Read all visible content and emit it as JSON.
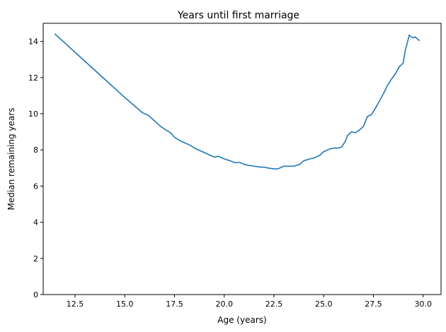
{
  "chart_data": {
    "type": "line",
    "title": "Years until first marriage",
    "xlabel": "Age (years)",
    "ylabel": "Median remaining years",
    "xlim": [
      10.9,
      30.9
    ],
    "ylim": [
      0,
      15
    ],
    "xticks": [
      12.5,
      15.0,
      17.5,
      20.0,
      22.5,
      25.0,
      27.5,
      30.0
    ],
    "xtick_labels": [
      "12.5",
      "15.0",
      "17.5",
      "20.0",
      "22.5",
      "25.0",
      "27.5",
      "30.0"
    ],
    "yticks": [
      0,
      2,
      4,
      6,
      8,
      10,
      12,
      14
    ],
    "ytick_labels": [
      "0",
      "2",
      "4",
      "6",
      "8",
      "10",
      "12",
      "14"
    ],
    "grid": false,
    "series": [
      {
        "color": "#1f77b4",
        "x": [
          11.5,
          12.0,
          13.0,
          14.0,
          15.0,
          15.9,
          16.0,
          16.2,
          16.5,
          16.8,
          17.0,
          17.3,
          17.5,
          17.8,
          18.0,
          18.3,
          18.5,
          18.8,
          19.0,
          19.3,
          19.5,
          19.7,
          20.0,
          20.3,
          20.5,
          20.8,
          21.0,
          21.2,
          21.5,
          21.8,
          22.0,
          22.2,
          22.5,
          22.7,
          22.9,
          23.0,
          23.3,
          23.5,
          23.8,
          24.0,
          24.3,
          24.5,
          24.8,
          25.0,
          25.3,
          25.5,
          25.7,
          25.9,
          26.1,
          26.2,
          26.4,
          26.6,
          26.8,
          27.0,
          27.2,
          27.4,
          27.6,
          27.8,
          28.0,
          28.2,
          28.4,
          28.6,
          28.8,
          29.0,
          29.1,
          29.2,
          29.3,
          29.4,
          29.5,
          29.6,
          29.7,
          29.8
        ],
        "y": [
          14.4,
          13.9,
          12.9,
          11.9,
          10.9,
          10.05,
          10.0,
          9.9,
          9.6,
          9.3,
          9.15,
          8.95,
          8.7,
          8.5,
          8.4,
          8.25,
          8.1,
          7.95,
          7.85,
          7.7,
          7.6,
          7.65,
          7.5,
          7.4,
          7.3,
          7.3,
          7.2,
          7.15,
          7.1,
          7.05,
          7.05,
          7.0,
          6.95,
          6.95,
          7.05,
          7.1,
          7.1,
          7.1,
          7.2,
          7.4,
          7.5,
          7.55,
          7.7,
          7.9,
          8.05,
          8.1,
          8.1,
          8.15,
          8.5,
          8.8,
          9.0,
          8.95,
          9.1,
          9.3,
          9.85,
          9.95,
          10.3,
          10.7,
          11.1,
          11.55,
          11.9,
          12.2,
          12.6,
          12.8,
          13.5,
          13.9,
          14.35,
          14.25,
          14.2,
          14.25,
          14.15,
          14.05
        ]
      }
    ]
  }
}
